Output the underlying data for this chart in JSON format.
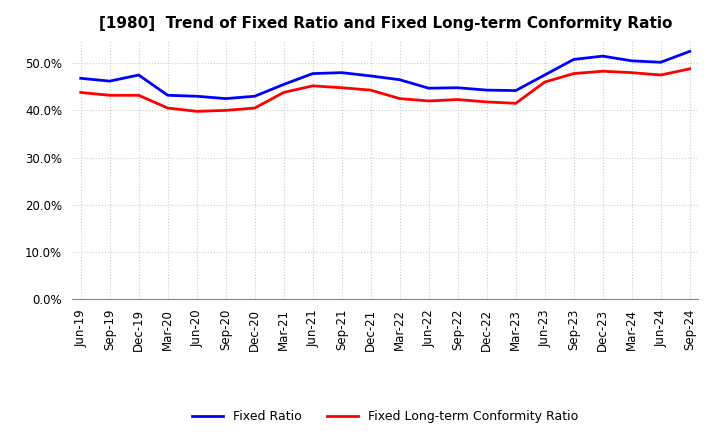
{
  "title": "[1980]  Trend of Fixed Ratio and Fixed Long-term Conformity Ratio",
  "x_labels": [
    "Jun-19",
    "Sep-19",
    "Dec-19",
    "Mar-20",
    "Jun-20",
    "Sep-20",
    "Dec-20",
    "Mar-21",
    "Jun-21",
    "Sep-21",
    "Dec-21",
    "Mar-22",
    "Jun-22",
    "Sep-22",
    "Dec-22",
    "Mar-23",
    "Jun-23",
    "Sep-23",
    "Dec-23",
    "Mar-24",
    "Jun-24",
    "Sep-24"
  ],
  "fixed_ratio": [
    46.8,
    46.2,
    47.5,
    43.2,
    43.0,
    42.5,
    43.0,
    45.5,
    47.8,
    48.0,
    47.3,
    46.5,
    44.7,
    44.8,
    44.3,
    44.2,
    47.5,
    50.8,
    51.5,
    50.5,
    50.2,
    52.5
  ],
  "fixed_lt_ratio": [
    43.8,
    43.2,
    43.2,
    40.5,
    39.8,
    40.0,
    40.5,
    43.8,
    45.2,
    44.8,
    44.3,
    42.5,
    42.0,
    42.3,
    41.8,
    41.5,
    46.0,
    47.8,
    48.3,
    48.0,
    47.5,
    48.8
  ],
  "fixed_ratio_color": "#0000ff",
  "fixed_lt_ratio_color": "#ff0000",
  "ylim": [
    0,
    55
  ],
  "yticks": [
    0,
    10,
    20,
    30,
    40,
    50
  ],
  "background_color": "#ffffff",
  "grid_color": "#cccccc",
  "legend_fixed": "Fixed Ratio",
  "legend_fixed_lt": "Fixed Long-term Conformity Ratio",
  "title_fontsize": 11,
  "tick_fontsize": 8.5,
  "legend_fontsize": 9
}
